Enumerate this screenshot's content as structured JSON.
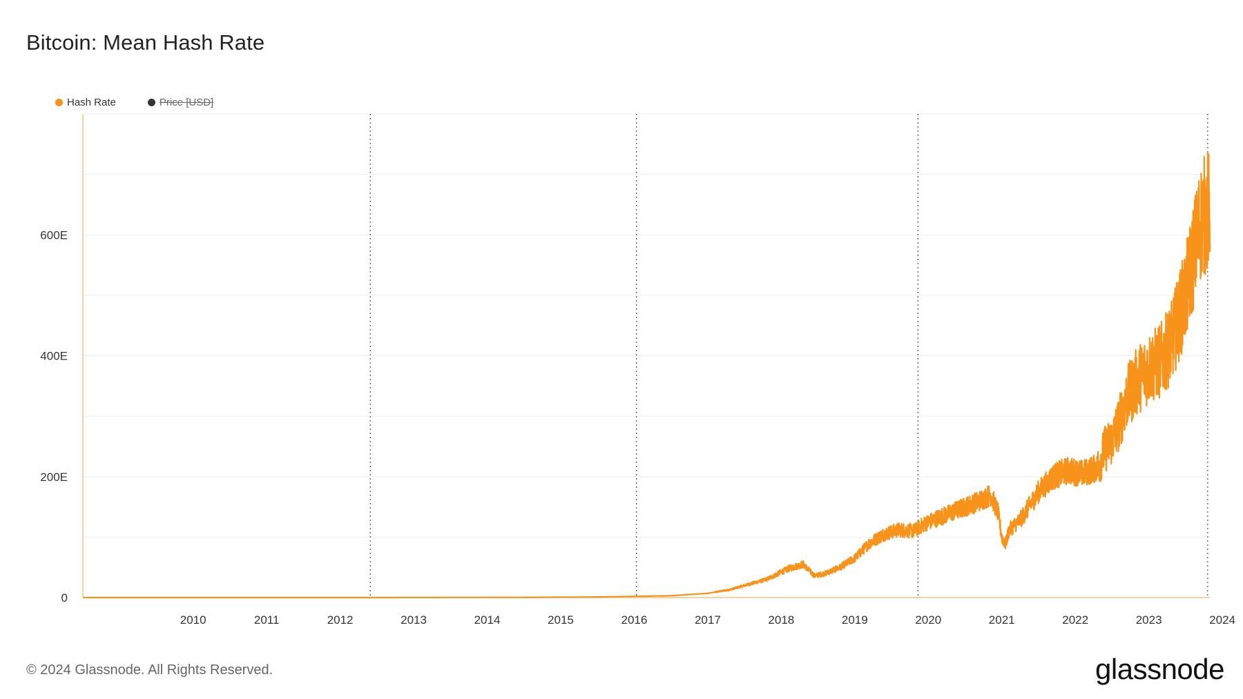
{
  "title": "Bitcoin: Mean Hash Rate",
  "legend": [
    {
      "label": "Hash Rate",
      "color": "#f7931a",
      "enabled": true
    },
    {
      "label": "Price [USD]",
      "color": "#333333",
      "enabled": false
    }
  ],
  "footer": "© 2024 Glassnode. All Rights Reserved.",
  "brand": "glassnode",
  "colors": {
    "series": "#f7931a",
    "grid": "#eeeeee",
    "axis": "#f7c27a",
    "halving_line": "#555555"
  },
  "chart_data": {
    "type": "line",
    "title": "Bitcoin: Mean Hash Rate",
    "xlabel": "",
    "ylabel": "",
    "x_range": [
      2009.0,
      2024.33
    ],
    "ylim": [
      0,
      800
    ],
    "y_ticks": [
      0,
      200,
      400,
      600
    ],
    "y_tick_labels": [
      "0",
      "200E",
      "400E",
      "600E"
    ],
    "x_ticks": [
      2010,
      2011,
      2012,
      2013,
      2014,
      2015,
      2016,
      2017,
      2018,
      2019,
      2020,
      2021,
      2022,
      2023,
      2024
    ],
    "x_tick_labels": [
      "2010",
      "2011",
      "2012",
      "2013",
      "2014",
      "2015",
      "2016",
      "2017",
      "2018",
      "2019",
      "2020",
      "2021",
      "2022",
      "2023",
      "2024"
    ],
    "halvings": [
      2012.91,
      2016.53,
      2020.36,
      2024.3
    ],
    "grid": true,
    "legend_position": "top-left",
    "series": [
      {
        "name": "Hash Rate",
        "unit": "EH/s",
        "x": [
          2009.0,
          2010.0,
          2011.0,
          2012.0,
          2013.0,
          2014.0,
          2015.0,
          2016.0,
          2016.5,
          2017.0,
          2017.5,
          2017.8,
          2018.0,
          2018.3,
          2018.6,
          2018.8,
          2018.95,
          2019.1,
          2019.3,
          2019.5,
          2019.7,
          2019.9,
          2020.1,
          2020.3,
          2020.45,
          2020.6,
          2020.8,
          2021.0,
          2021.2,
          2021.35,
          2021.45,
          2021.5,
          2021.55,
          2021.6,
          2021.75,
          2022.0,
          2022.2,
          2022.4,
          2022.6,
          2022.8,
          2022.9,
          2023.0,
          2023.1,
          2023.2,
          2023.35,
          2023.5,
          2023.65,
          2023.8,
          2023.9,
          2024.0,
          2024.1,
          2024.2,
          2024.3
        ],
        "values": [
          0,
          0,
          0,
          0,
          0,
          0.2,
          0.4,
          1,
          2,
          3,
          7,
          13,
          20,
          30,
          48,
          55,
          36,
          40,
          50,
          65,
          90,
          105,
          112,
          110,
          122,
          130,
          140,
          150,
          160,
          170,
          140,
          100,
          88,
          112,
          128,
          175,
          200,
          210,
          205,
          215,
          245,
          260,
          290,
          330,
          360,
          380,
          390,
          420,
          460,
          500,
          560,
          620,
          640
        ]
      }
    ]
  }
}
